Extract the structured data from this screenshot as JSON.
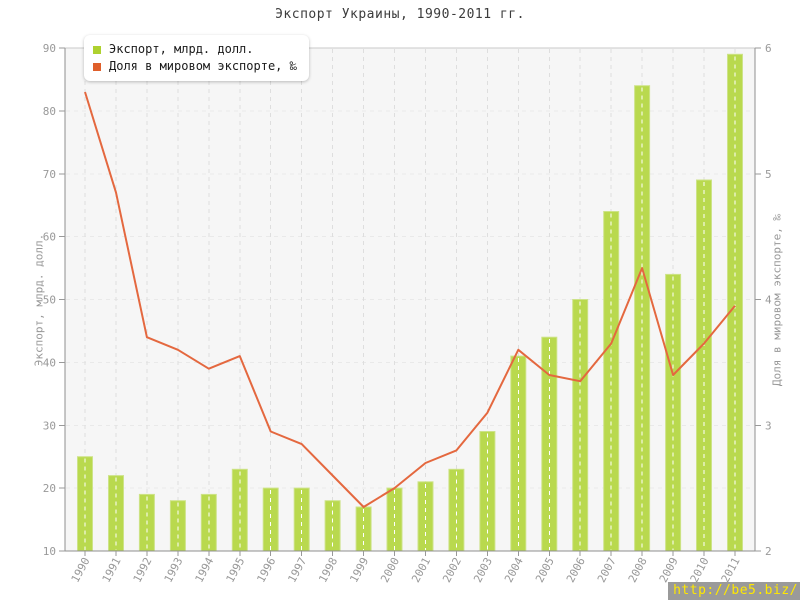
{
  "chart_data": {
    "type": "bar",
    "title": "Экспорт Украины, 1990-2011 гг.",
    "categories": [
      "1990",
      "1991",
      "1992",
      "1993",
      "1994",
      "1995",
      "1996",
      "1997",
      "1998",
      "1999",
      "2000",
      "2001",
      "2002",
      "2003",
      "2004",
      "2005",
      "2006",
      "2007",
      "2008",
      "2009",
      "2010",
      "2011"
    ],
    "series": [
      {
        "name": "Экспорт, млрд. долл.",
        "type": "bar",
        "axis": "left",
        "color": "#b9d94e",
        "values": [
          25,
          22,
          19,
          18,
          19,
          23,
          20,
          20,
          18,
          17,
          20,
          21,
          23,
          29,
          41,
          44,
          50,
          64,
          84,
          54,
          69,
          89
        ]
      },
      {
        "name": "Доля в мировом экспорте, ‰",
        "type": "line",
        "axis": "right",
        "color": "#e4683f",
        "values": [
          5.65,
          4.85,
          3.7,
          3.6,
          3.45,
          3.55,
          2.95,
          2.85,
          2.6,
          2.35,
          2.5,
          2.7,
          2.8,
          3.1,
          3.6,
          3.4,
          3.35,
          3.65,
          4.25,
          3.4,
          3.65,
          3.95
        ]
      }
    ],
    "left_axis": {
      "title": "Экспорт, млрд. долл.",
      "range": [
        10,
        90
      ],
      "ticks": [
        10,
        20,
        30,
        40,
        50,
        60,
        70,
        80,
        90
      ]
    },
    "right_axis": {
      "title": "Доля в мировом экспорте, ‰",
      "range": [
        2,
        6
      ],
      "ticks": [
        2,
        3,
        4,
        5,
        6
      ]
    },
    "legend_position": "top-left",
    "grid": true
  },
  "legend": {
    "items": [
      {
        "label": "Экспорт, млрд. долл.",
        "color": "#aed12f"
      },
      {
        "label": "Доля в мировом экспорте, ‰",
        "color": "#df5f2b"
      }
    ]
  },
  "watermark": {
    "text": "http://be5.biz/"
  },
  "colors": {
    "bar": "#b9d94e",
    "bar_border": "#cde388",
    "bar_grid_overlay": "#ffffff",
    "line": "#e4683f",
    "plot_bg": "#f6f6f6",
    "plot_border": "#c9c9c9",
    "grid_h": "#e9e9e9",
    "grid_v": "#dedede",
    "axis": "#8f8f8f",
    "tick": "#999999",
    "tick_label": "#999999",
    "title": "#3c3c3c"
  }
}
